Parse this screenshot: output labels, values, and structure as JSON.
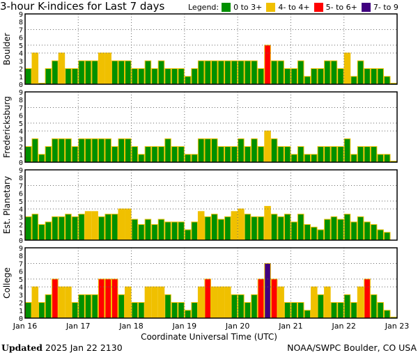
{
  "title": "3-hour K-indices for Last 7 days",
  "legend": {
    "label": "Legend:",
    "items": [
      {
        "label": "0 to 3+",
        "color": "#009000",
        "min": 0
      },
      {
        "label": "4- to 4+",
        "color": "#f0c000",
        "min": 3.67
      },
      {
        "label": "5- to 6+",
        "color": "#ff0000",
        "min": 4.67
      },
      {
        "label": "7- to 9",
        "color": "#400080",
        "min": 6.67
      }
    ]
  },
  "footer": {
    "updated_label": "Updated",
    "updated_value": "2025 Jan 22 2130",
    "credit": "NOAA/SWPC Boulder, CO USA"
  },
  "chart_data": {
    "type": "bar",
    "xlabel": "Coordinate Universal Time (UTC)",
    "x_ticks": [
      "Jan 16",
      "Jan 17",
      "Jan 18",
      "Jan 19",
      "Jan 20",
      "Jan 21",
      "Jan 22",
      "Jan 23"
    ],
    "y_ticks": [
      "0",
      "1",
      "2",
      "3",
      "4",
      "5",
      "6",
      "7",
      "8",
      "9"
    ],
    "ylim": [
      0,
      9
    ],
    "bars_per_day": 8,
    "grid": {
      "horizontal": [
        4,
        5,
        7
      ],
      "vertical": "daily",
      "style": "dotted"
    },
    "bar_outline_color": "#f0c000",
    "panels": [
      {
        "name": "Boulder",
        "values": [
          2,
          4,
          0,
          2,
          3,
          4,
          2,
          2,
          3,
          3,
          3,
          4,
          4,
          3,
          3,
          3,
          2,
          2,
          3,
          2,
          3,
          2,
          2,
          2,
          1,
          2,
          3,
          3,
          3,
          3,
          3,
          3,
          3,
          3,
          3,
          2,
          5,
          3,
          3,
          2,
          2,
          3,
          1,
          2,
          2,
          3,
          3,
          2,
          4,
          1,
          3,
          2,
          2,
          2,
          1,
          0
        ]
      },
      {
        "name": "Fredericksburg",
        "values": [
          2,
          3,
          1,
          2,
          3,
          3,
          3,
          2,
          3,
          3,
          3,
          3,
          3,
          2,
          3,
          3,
          2,
          1,
          2,
          2,
          2,
          3,
          2,
          2,
          1,
          1,
          3,
          3,
          3,
          2,
          2,
          2,
          3,
          2,
          3,
          2,
          4,
          3,
          2,
          2,
          1,
          2,
          1,
          1,
          2,
          2,
          2,
          2,
          3,
          1,
          2,
          2,
          2,
          1,
          1,
          0
        ]
      },
      {
        "name": "Est. Planetary",
        "values": [
          3,
          3.33,
          2,
          2.33,
          3,
          3,
          3.33,
          3,
          3.33,
          3.67,
          3.67,
          3,
          3.33,
          3.33,
          4,
          4,
          2.67,
          2,
          2.67,
          2,
          2.67,
          2.33,
          2.33,
          2.33,
          1.33,
          2.33,
          3.67,
          3,
          3.33,
          2.67,
          3,
          3.67,
          4,
          3.33,
          3,
          3,
          4.33,
          3.33,
          3,
          3.33,
          2.33,
          3.33,
          2,
          1.67,
          1.33,
          2.67,
          3,
          2.67,
          3.33,
          2.33,
          3,
          2.33,
          2,
          1.33,
          1,
          null
        ]
      },
      {
        "name": "College",
        "values": [
          2,
          4,
          2,
          3,
          5,
          4,
          4,
          2,
          3,
          3,
          3,
          5,
          5,
          5,
          3,
          4,
          2,
          2,
          4,
          4,
          4,
          3,
          2,
          2,
          1,
          2,
          4,
          5,
          4,
          4,
          4,
          3,
          3,
          2,
          3,
          5,
          7,
          5,
          4,
          2,
          2,
          2,
          1,
          4,
          3,
          4,
          2,
          2,
          3,
          2,
          4,
          5,
          3,
          2,
          1,
          0
        ]
      }
    ]
  }
}
